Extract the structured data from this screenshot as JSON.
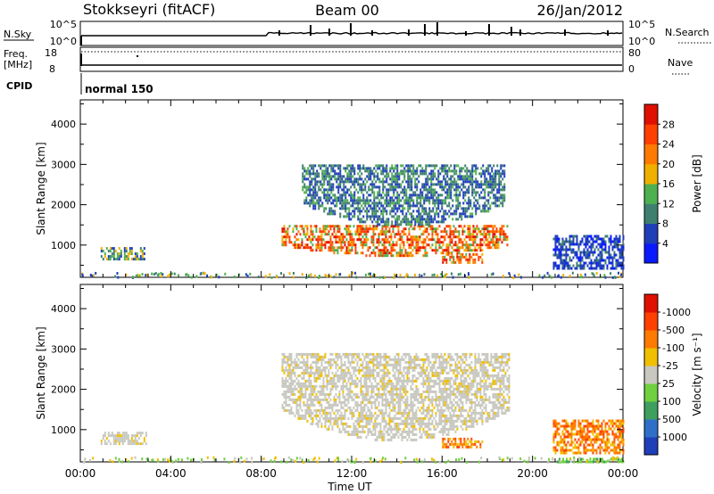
{
  "header": {
    "station": "Stokkseyri (fitACF)",
    "beam": "Beam 00",
    "date": "26/Jan/2012"
  },
  "strips": {
    "nsky": {
      "label": "N.Sky",
      "top_tick": "10^5",
      "bottom_tick": "10^0"
    },
    "nsearch": {
      "label": "N.Search",
      "top_tick": "10^5",
      "bottom_tick": "10^0"
    },
    "freq": {
      "label_line1": "Freq.",
      "label_line2": "[MHz]",
      "top_tick": "18",
      "bottom_tick": "8"
    },
    "nave": {
      "label": "Nave",
      "top_tick": "80",
      "bottom_tick": "0"
    },
    "cpid": {
      "label": "CPID",
      "value": "normal 150"
    }
  },
  "chart_data": [
    {
      "type": "heatmap",
      "panel": "power",
      "ylabel": "Slant Range [km]",
      "yticks": [
        "1000",
        "2000",
        "3000",
        "4000"
      ],
      "ylim": [
        200,
        4600
      ],
      "x": [
        "00:00",
        "04:00",
        "08:00",
        "12:00",
        "16:00",
        "20:00",
        "00:00"
      ],
      "xlim_hours": [
        0,
        24
      ],
      "colorbar": {
        "label": "Power [dB]",
        "ticks": [
          "4",
          "8",
          "12",
          "16",
          "20",
          "24",
          "28"
        ],
        "colors": [
          "#0a1aff",
          "#1f3fb8",
          "#3f7f6f",
          "#4fb04f",
          "#f0b000",
          "#ff7a00",
          "#ff4000",
          "#e01000"
        ]
      },
      "regions": [
        {
          "t": [
            0.9,
            2.9
          ],
          "range_km": [
            650,
            950
          ],
          "level": "medium-high"
        },
        {
          "t": [
            8.9,
            19.0
          ],
          "range_km": [
            750,
            1500
          ],
          "level": "high"
        },
        {
          "t": [
            9.8,
            18.8
          ],
          "range_km": [
            1500,
            3000
          ],
          "level": "low-medium"
        },
        {
          "t": [
            16.0,
            17.8
          ],
          "range_km": [
            550,
            800
          ],
          "level": "high"
        },
        {
          "t": [
            20.9,
            24.0
          ],
          "range_km": [
            400,
            1250
          ],
          "level": "low"
        }
      ]
    },
    {
      "type": "heatmap",
      "panel": "velocity",
      "ylabel": "Slant Range [km]",
      "xlabel": "Time UT",
      "yticks": [
        "1000",
        "2000",
        "3000",
        "4000"
      ],
      "ylim": [
        200,
        4600
      ],
      "x": [
        "00:00",
        "04:00",
        "08:00",
        "12:00",
        "16:00",
        "20:00",
        "00:00"
      ],
      "xlim_hours": [
        0,
        24
      ],
      "colorbar": {
        "label": "Velocity [m s⁻¹]",
        "ticks": [
          "1000",
          "500",
          "100",
          "25",
          "-25",
          "-100",
          "-500",
          "-1000"
        ],
        "colors": [
          "#1f3fb8",
          "#2f6fc8",
          "#3f9f5f",
          "#6fd040",
          "#c8c8c0",
          "#f0c000",
          "#ff7a00",
          "#ff4000",
          "#e01000"
        ]
      },
      "regions": [
        {
          "t": [
            0.9,
            2.9
          ],
          "range_km": [
            650,
            950
          ],
          "level": "near-zero"
        },
        {
          "t": [
            8.9,
            19.0
          ],
          "range_km": [
            750,
            2900
          ],
          "level": "near-zero"
        },
        {
          "t": [
            16.0,
            17.8
          ],
          "range_km": [
            550,
            800
          ],
          "level": "-100 to -500"
        },
        {
          "t": [
            20.9,
            24.0
          ],
          "range_km": [
            400,
            1250
          ],
          "level": "-100 to -500"
        },
        {
          "t": [
            21.0,
            24.0
          ],
          "range_km": [
            220,
            300
          ],
          "level": "100 to 500"
        }
      ]
    }
  ]
}
